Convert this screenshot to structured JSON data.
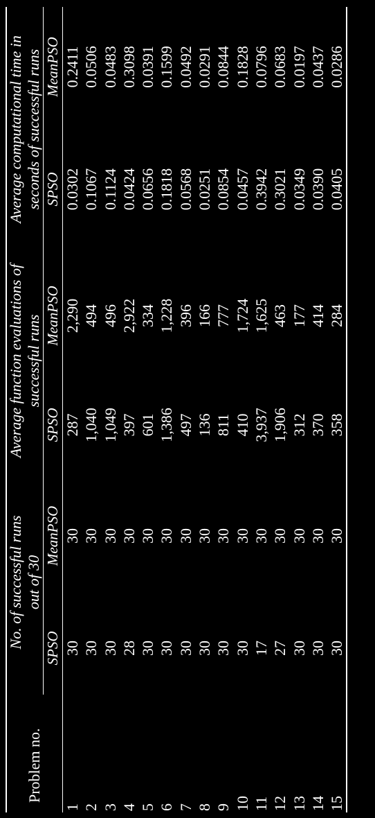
{
  "table": {
    "header": {
      "problem_label": "Problem no.",
      "groups": [
        {
          "line1": "No. of successful runs",
          "line2": "out of 30"
        },
        {
          "line1": "Average function evaluations of",
          "line2": "successful runs"
        },
        {
          "line1": "Average computational time in",
          "line2": "seconds of successful runs"
        }
      ],
      "subcols": [
        "SPSO",
        "MeanPSO",
        "SPSO",
        "MeanPSO",
        "SPSO",
        "MeanPSO"
      ]
    },
    "rows": [
      [
        "1",
        "30",
        "30",
        "287",
        "2,290",
        "0.0302",
        "0.2411"
      ],
      [
        "2",
        "30",
        "30",
        "1,040",
        "494",
        "0.1067",
        "0.0506"
      ],
      [
        "3",
        "30",
        "30",
        "1,049",
        "496",
        "0.1124",
        "0.0483"
      ],
      [
        "4",
        "28",
        "30",
        "397",
        "2,922",
        "0.0424",
        "0.3098"
      ],
      [
        "5",
        "30",
        "30",
        "601",
        "334",
        "0.0656",
        "0.0391"
      ],
      [
        "6",
        "30",
        "30",
        "1,386",
        "1,228",
        "0.1818",
        "0.1599"
      ],
      [
        "7",
        "30",
        "30",
        "497",
        "396",
        "0.0568",
        "0.0492"
      ],
      [
        "8",
        "30",
        "30",
        "136",
        "166",
        "0.0251",
        "0.0291"
      ],
      [
        "9",
        "30",
        "30",
        "811",
        "777",
        "0.0854",
        "0.0844"
      ],
      [
        "10",
        "30",
        "30",
        "410",
        "1,724",
        "0.0457",
        "0.1828"
      ],
      [
        "11",
        "17",
        "30",
        "3,937",
        "1,625",
        "0.3942",
        "0.0796"
      ],
      [
        "12",
        "27",
        "30",
        "1,906",
        "463",
        "0.3021",
        "0.0683"
      ],
      [
        "13",
        "30",
        "30",
        "312",
        "177",
        "0.0349",
        "0.0197"
      ],
      [
        "14",
        "30",
        "30",
        "370",
        "414",
        "0.0390",
        "0.0437"
      ],
      [
        "15",
        "30",
        "30",
        "358",
        "284",
        "0.0405",
        "0.0286"
      ]
    ]
  }
}
